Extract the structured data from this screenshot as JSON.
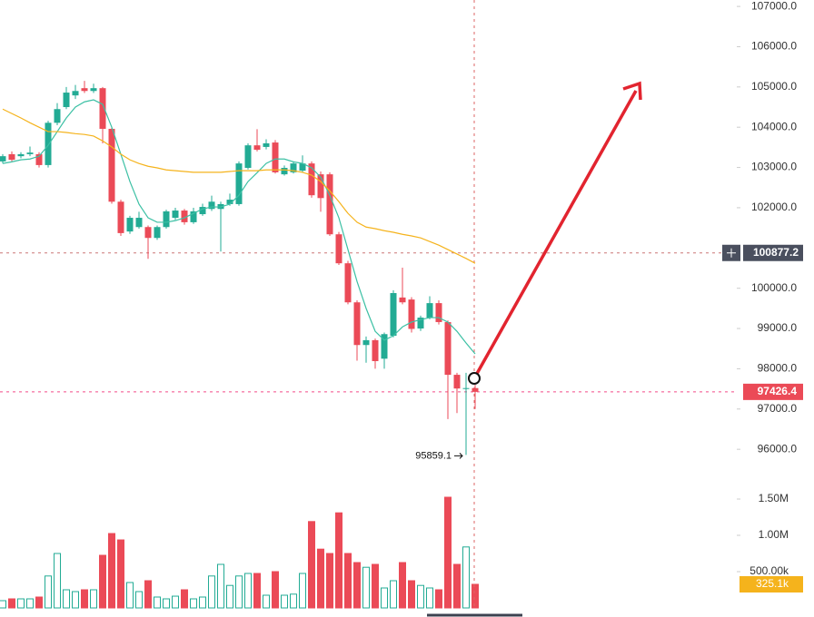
{
  "chart_data": {
    "type": "candlestick",
    "up_color": "#22ab94",
    "down_color": "#eb4a57",
    "open": [
      103150,
      103330,
      103280,
      103330,
      103330,
      103060,
      104110,
      104500,
      104790,
      104970,
      104900,
      104970,
      103960,
      102150,
      101410,
      101520,
      101520,
      101250,
      101520,
      101750,
      101930,
      101640,
      101840,
      101970,
      101970,
      102090,
      102090,
      102990,
      103550,
      103510,
      103620,
      102830,
      102880,
      102920,
      103100,
      102830,
      102830,
      101340,
      100620,
      99650,
      98590,
      98710,
      98250,
      98820,
      99770,
      99720,
      99000,
      99270,
      99630,
      99160,
      97850,
      97510,
      97520
    ],
    "high": [
      103330,
      103400,
      103380,
      103520,
      103380,
      104160,
      104600,
      105000,
      105050,
      105150,
      105080,
      105000,
      104000,
      102200,
      101800,
      101900,
      101560,
      101560,
      101950,
      102000,
      101970,
      102000,
      102100,
      102300,
      102150,
      102350,
      103150,
      103600,
      103950,
      103700,
      103680,
      103050,
      103150,
      103300,
      103150,
      102900,
      102880,
      101400,
      100680,
      99700,
      98800,
      98750,
      98900,
      99950,
      100510,
      99780,
      99320,
      99800,
      99700,
      99200,
      97900,
      97900,
      97600
    ],
    "low": [
      103100,
      103150,
      103230,
      103280,
      103000,
      103000,
      104050,
      104450,
      104700,
      104850,
      104850,
      103600,
      102100,
      101300,
      101350,
      101480,
      100730,
      101200,
      101480,
      101700,
      101580,
      101600,
      101800,
      101920,
      100910,
      102050,
      102050,
      102950,
      103400,
      103450,
      102850,
      102800,
      102850,
      102880,
      102250,
      101900,
      101300,
      100580,
      99600,
      98200,
      98150,
      98000,
      98000,
      98780,
      99600,
      98900,
      98940,
      99230,
      99100,
      96750,
      96900,
      95859.1,
      97000
    ],
    "close": [
      103280,
      103190,
      103330,
      103370,
      103060,
      104110,
      104450,
      104860,
      104900,
      104900,
      104970,
      103960,
      102150,
      101370,
      101750,
      101750,
      101250,
      101520,
      101910,
      101930,
      101640,
      101910,
      102020,
      102150,
      102090,
      102200,
      103100,
      103550,
      103440,
      103600,
      102880,
      102990,
      103100,
      103100,
      102310,
      102240,
      101340,
      100620,
      99650,
      98590,
      98710,
      98190,
      98860,
      99880,
      99650,
      98990,
      99270,
      99630,
      99160,
      97850,
      97510,
      97520,
      97426.4
    ],
    "ma": [
      {
        "color": "#3cc0a4",
        "values": [
          103100,
          103140,
          103190,
          103210,
          103280,
          103550,
          103890,
          104230,
          104500,
          104630,
          104680,
          104570,
          104000,
          103330,
          102650,
          102090,
          101750,
          101640,
          101640,
          101680,
          101750,
          101860,
          101970,
          102020,
          102020,
          102090,
          102310,
          102650,
          102870,
          103100,
          103210,
          103210,
          103140,
          103100,
          102990,
          102760,
          102310,
          101750,
          100960,
          100170,
          99500,
          98930,
          98710,
          98820,
          99040,
          99160,
          99220,
          99270,
          99270,
          99160,
          98930,
          98640,
          98370
        ]
      },
      {
        "color": "#f5b31c",
        "values": [
          104450,
          104340,
          104230,
          104110,
          104000,
          103890,
          103890,
          103870,
          103840,
          103820,
          103780,
          103660,
          103510,
          103330,
          103190,
          103100,
          103030,
          102990,
          102940,
          102920,
          102900,
          102880,
          102880,
          102880,
          102880,
          102900,
          102920,
          102920,
          102920,
          102940,
          102940,
          102940,
          102920,
          102880,
          102810,
          102650,
          102420,
          102150,
          101860,
          101640,
          101520,
          101480,
          101430,
          101390,
          101340,
          101300,
          101250,
          101160,
          101070,
          100960,
          100850,
          100740,
          100620
        ]
      }
    ],
    "ylim": [
      95440,
      107160
    ],
    "yticks": [
      {
        "value": 107000,
        "label": "107000.0"
      },
      {
        "value": 106000,
        "label": "106000.0"
      },
      {
        "value": 105000,
        "label": "105000.0"
      },
      {
        "value": 104000,
        "label": "104000.0"
      },
      {
        "value": 103000,
        "label": "103000.0"
      },
      {
        "value": 102000,
        "label": "102000.0"
      },
      {
        "value": 100000,
        "label": "100000.0"
      },
      {
        "value": 99000,
        "label": "99000.0"
      },
      {
        "value": 98000,
        "label": "98000.0"
      },
      {
        "value": 97000,
        "label": "97000.0"
      },
      {
        "value": 96000,
        "label": "96000.0"
      }
    ],
    "crosshair_price": 100877.2,
    "volume": {
      "values": [
        100000,
        125000,
        125000,
        125000,
        150000,
        440000,
        750000,
        250000,
        225000,
        250000,
        250000,
        725000,
        1025000,
        937000,
        350000,
        225000,
        375000,
        150000,
        125000,
        162000,
        250000,
        125000,
        150000,
        440000,
        600000,
        310000,
        440000,
        475000,
        475000,
        175000,
        500000,
        175000,
        190000,
        475000,
        1190000,
        810000,
        750000,
        1310000,
        750000,
        625000,
        560000,
        600000,
        275000,
        375000,
        625000,
        375000,
        310000,
        275000,
        250000,
        1525000,
        600000,
        840000,
        325100
      ],
      "last_label": "325.1k",
      "last_color": "#f5b31c",
      "ylim": [
        0,
        1600000
      ],
      "yticks": [
        {
          "value": 1500000,
          "label": "1.50M"
        },
        {
          "value": 1000000,
          "label": "1.00M"
        },
        {
          "value": 500000,
          "label": "500.00k"
        }
      ]
    }
  }
}
